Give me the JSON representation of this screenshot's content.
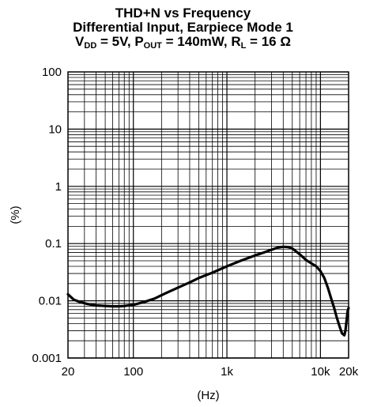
{
  "chart_data": {
    "type": "line",
    "title_lines": [
      {
        "parts": [
          {
            "text": "THD+N vs Frequency"
          }
        ]
      },
      {
        "parts": [
          {
            "text": "Differential Input, Earpiece Mode 1"
          }
        ]
      },
      {
        "parts": [
          {
            "text": "V"
          },
          {
            "text": "DD",
            "sub": true
          },
          {
            "text": " = 5V, P"
          },
          {
            "text": "OUT",
            "sub": true
          },
          {
            "text": " = 140mW, R"
          },
          {
            "text": "L",
            "sub": true
          },
          {
            "text": " = 16 Ω"
          }
        ]
      }
    ],
    "xlabel": "(Hz)",
    "ylabel": "(%)",
    "x_scale": "log",
    "y_scale": "log",
    "xlim": [
      20,
      20000
    ],
    "ylim": [
      0.001,
      100
    ],
    "grid": true,
    "x_ticks": [
      {
        "value": 20,
        "label": "20"
      },
      {
        "value": 100,
        "label": "100"
      },
      {
        "value": 1000,
        "label": "1k"
      },
      {
        "value": 10000,
        "label": "10k"
      },
      {
        "value": 20000,
        "label": "20k"
      }
    ],
    "y_ticks": [
      {
        "value": 100,
        "label": "100"
      },
      {
        "value": 10,
        "label": "10"
      },
      {
        "value": 1,
        "label": "1"
      },
      {
        "value": 0.1,
        "label": "0.1"
      },
      {
        "value": 0.01,
        "label": "0.01"
      },
      {
        "value": 0.001,
        "label": "0.001"
      }
    ],
    "series": [
      {
        "color": "#000000",
        "x": [
          20,
          23,
          27,
          32,
          40,
          50,
          60,
          70,
          80,
          100,
          130,
          170,
          220,
          300,
          400,
          500,
          700,
          1000,
          1400,
          2000,
          2500,
          3000,
          3500,
          4000,
          4500,
          5000,
          6000,
          7000,
          8000,
          9000,
          10000,
          11000,
          12000,
          13000,
          14000,
          15000,
          16000,
          17000,
          18000,
          18500,
          19000,
          19500,
          20000
        ],
        "y": [
          0.013,
          0.0105,
          0.0095,
          0.0088,
          0.0083,
          0.0081,
          0.008,
          0.008,
          0.0081,
          0.0085,
          0.0095,
          0.011,
          0.0135,
          0.017,
          0.021,
          0.025,
          0.031,
          0.04,
          0.05,
          0.062,
          0.07,
          0.078,
          0.085,
          0.088,
          0.087,
          0.082,
          0.065,
          0.052,
          0.045,
          0.04,
          0.033,
          0.025,
          0.017,
          0.011,
          0.0075,
          0.005,
          0.0036,
          0.0027,
          0.0025,
          0.003,
          0.0045,
          0.0065,
          0.0075
        ]
      }
    ]
  }
}
